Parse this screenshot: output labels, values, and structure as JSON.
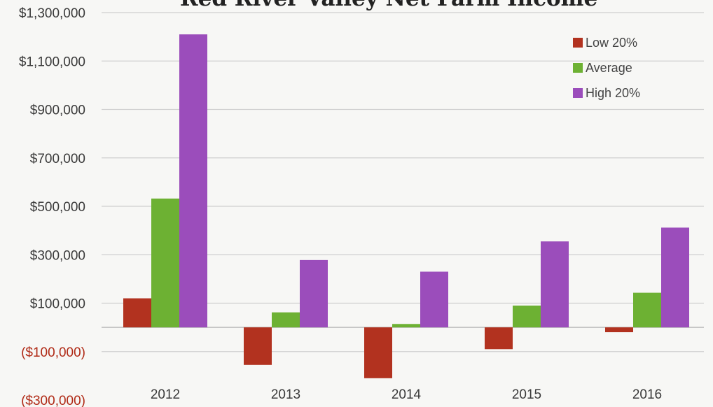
{
  "chart_data": {
    "type": "bar",
    "title": "Red River Valley Net Farm Income",
    "xlabel": "",
    "ylabel": "",
    "categories": [
      "2012",
      "2013",
      "2014",
      "2015",
      "2016"
    ],
    "series": [
      {
        "name": "Low 20%",
        "color": "#b2321f",
        "values": [
          120000,
          -155000,
          -210000,
          -90000,
          -20000
        ]
      },
      {
        "name": "Average",
        "color": "#6db133",
        "values": [
          532000,
          62000,
          14000,
          90000,
          143000
        ]
      },
      {
        "name": "High 20%",
        "color": "#9b4dbb",
        "values": [
          1210000,
          278000,
          230000,
          355000,
          412000
        ]
      }
    ],
    "ylim": [
      -300000,
      1300000
    ],
    "y_tick_labels": [
      "$1,300,000",
      "$1,100,000",
      "$900,000",
      "$700,000",
      "$500,000",
      "$300,000",
      "$100,000",
      "($100,000)",
      "($300,000)"
    ],
    "y_tick_values": [
      1300000,
      1100000,
      900000,
      700000,
      500000,
      300000,
      100000,
      -100000,
      -300000
    ],
    "grid": true,
    "legend_position": "top-right"
  }
}
